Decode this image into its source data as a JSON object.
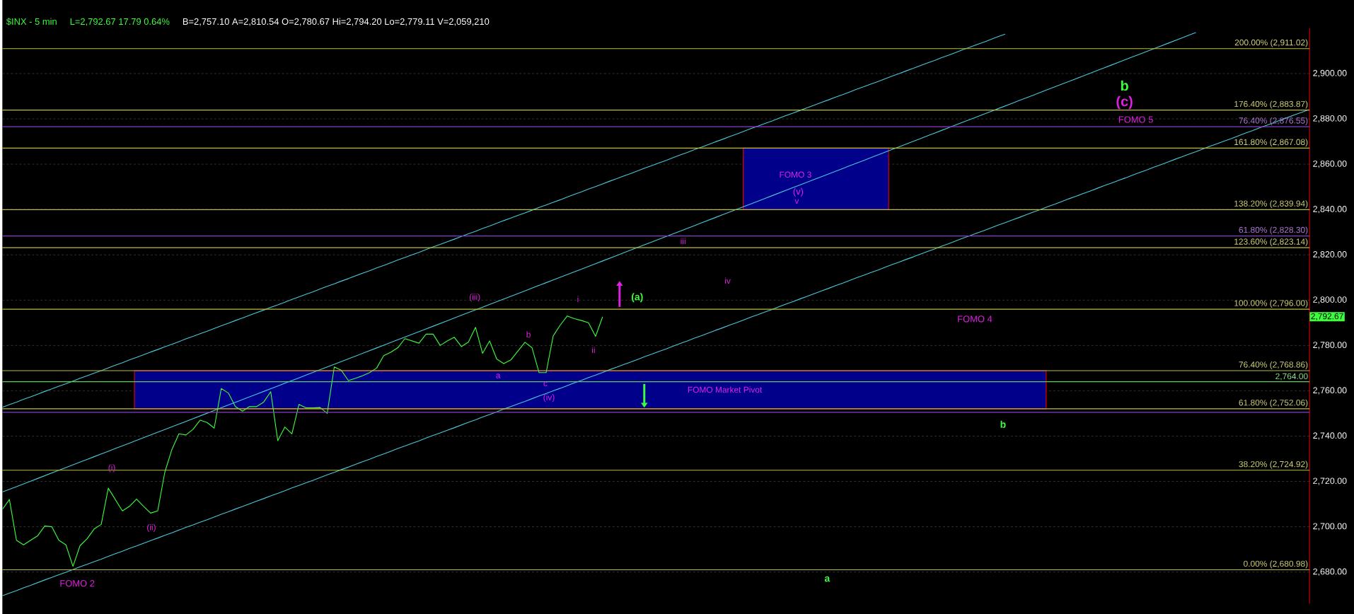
{
  "chart_data": {
    "type": "line",
    "title": "$INX - 5 min",
    "subtitle": "L=2,792.67   17.79   0.64%",
    "categories": [
      null,
      null,
      null,
      null,
      null,
      null,
      null,
      null,
      null,
      null,
      null,
      null,
      null,
      null,
      null,
      null,
      null,
      null,
      null,
      null,
      null,
      null,
      null,
      null,
      null,
      null,
      null,
      null,
      null,
      null,
      null,
      null,
      null,
      null,
      null,
      null,
      null,
      null,
      null,
      null,
      null,
      null,
      null,
      null,
      null,
      null,
      null,
      null,
      null,
      null,
      null,
      null,
      null,
      null,
      null,
      null,
      null,
      null,
      null,
      null,
      null,
      null,
      null,
      null,
      null,
      null,
      null,
      null,
      null,
      null,
      null,
      null,
      null,
      null,
      null,
      null,
      null,
      null,
      null,
      null,
      null,
      null,
      null,
      null,
      null,
      null,
      null,
      null,
      null,
      null,
      null,
      null,
      null,
      null,
      null,
      null,
      null,
      null,
      null,
      null,
      null,
      null,
      null,
      null,
      null,
      null,
      null,
      null,
      null,
      null,
      null,
      null,
      null,
      null,
      null,
      null,
      null,
      null,
      null,
      null,
      null,
      null,
      null,
      null,
      null,
      null,
      null,
      null,
      null,
      null,
      null,
      null,
      null,
      null,
      null,
      null,
      null,
      null,
      null,
      null,
      null,
      null,
      null,
      null,
      null,
      null,
      null,
      null,
      null,
      null,
      null,
      null,
      null,
      null,
      null,
      null,
      null,
      null,
      null,
      null,
      null,
      null,
      null,
      null,
      null,
      null,
      null,
      null,
      null,
      null,
      null,
      null,
      null,
      null,
      null,
      null,
      null,
      null,
      null,
      null,
      null,
      null,
      null,
      null,
      null,
      null
    ],
    "ylim": [
      2666,
      2920
    ],
    "yticks": [
      {
        "value": 2680,
        "label": "2,680.00"
      },
      {
        "value": 2700,
        "label": "2,700.00"
      },
      {
        "value": 2720,
        "label": "2,720.00"
      },
      {
        "value": 2740,
        "label": "2,740.00"
      },
      {
        "value": 2760,
        "label": "2,760.00"
      },
      {
        "value": 2780,
        "label": "2,780.00"
      },
      {
        "value": 2800,
        "label": "2,800.00"
      },
      {
        "value": 2820,
        "label": "2,820.00"
      },
      {
        "value": 2840,
        "label": "2,840.00"
      },
      {
        "value": 2860,
        "label": "2,860.00"
      },
      {
        "value": 2880,
        "label": "2,880.00"
      },
      {
        "value": 2900,
        "label": "2,900.00"
      }
    ],
    "tick_labels": "y",
    "grid": "y",
    "series": [
      {
        "color": "#3cff3c",
        "values": [
          2707.6,
          2712,
          2694,
          2692,
          2694,
          2696,
          2700.3,
          2700,
          2694,
          2692,
          2682.5,
          2691.6,
          2694.7,
          2699,
          2701,
          2717,
          2712,
          2707,
          2709,
          2712.2,
          2709,
          2706,
          2707,
          2724,
          2734,
          2741,
          2740.5,
          2743,
          2747,
          2746,
          2743.5,
          2761,
          2759,
          2753,
          2751,
          2753,
          2753,
          2755,
          2759.6,
          2738,
          2744,
          2741,
          2754,
          2752.5,
          2752.5,
          2752.6,
          2750,
          2770.5,
          2769,
          2764.5,
          2765.5,
          2766.6,
          2768,
          2770,
          2775.5,
          2777,
          2779,
          2783,
          2782,
          2781,
          2785,
          2785,
          2780,
          2782,
          2783.6,
          2779.5,
          2781.5,
          2788,
          2776.5,
          2782,
          2774,
          2772,
          2773.6,
          2777.5,
          2781.4,
          2779,
          2768,
          2768,
          2784.2,
          2789,
          2793,
          2791.8,
          2791,
          2790,
          2784,
          2792.67,
          null,
          null,
          null,
          null,
          null,
          null,
          null,
          null,
          null,
          null,
          null,
          null,
          null,
          null,
          null,
          null,
          null,
          null,
          null,
          null,
          null,
          null,
          null,
          null,
          null,
          null,
          null,
          null,
          null,
          null,
          null,
          null,
          null,
          null,
          null,
          null,
          null,
          null,
          null,
          null,
          null,
          null,
          null,
          null,
          null,
          null,
          null,
          null,
          null,
          null,
          null,
          null,
          null,
          null,
          null,
          null,
          null,
          null,
          null,
          null,
          null,
          null,
          null,
          null,
          null,
          null,
          null,
          null,
          null,
          null,
          null,
          null,
          null,
          null,
          null,
          null,
          null,
          null,
          null,
          null,
          null,
          null,
          null,
          null,
          null,
          null,
          null,
          null,
          null,
          null,
          null,
          null,
          null,
          null,
          null,
          null,
          null,
          null,
          null,
          null
        ]
      },
      {
        "type": "line",
        "color": "#48c8d8",
        "values": [
          2752.7,
          2753.9,
          2755.0,
          2756.2,
          2757.3,
          2758.5,
          2759.7,
          2760.8,
          2762.0,
          2763.1,
          2764.3,
          2765.5,
          2766.6,
          2767.8,
          2768.9,
          2770.1,
          2771.3,
          2772.4,
          2773.6,
          2774.7,
          2775.9,
          2777.1,
          2778.2,
          2779.4,
          2780.5,
          2781.7,
          2782.9,
          2784.0,
          2785.2,
          2786.3,
          2787.5,
          2788.7,
          2789.8,
          2791.0,
          2792.1,
          2793.3,
          2794.5,
          2795.6,
          2796.8,
          2797.9,
          2799.1,
          2800.3,
          2801.4,
          2802.6,
          2803.7,
          2804.9,
          2806.1,
          2807.2,
          2808.4,
          2809.5,
          2810.7,
          2811.9,
          2813.0,
          2814.2,
          2815.3,
          2816.5,
          2817.7,
          2818.8,
          2820.0,
          2821.1,
          2822.3,
          2823.5,
          2824.6,
          2825.8,
          2826.9,
          2828.1,
          2829.3,
          2830.4,
          2831.6,
          2832.7,
          2833.9,
          2835.1,
          2836.2,
          2837.4,
          2838.5,
          2839.7,
          2840.9,
          2842.0,
          2843.2,
          2844.3,
          2845.5,
          2846.7,
          2847.8,
          2849.0,
          2850.1,
          2851.3,
          2852.5,
          2853.6,
          2854.8,
          2855.9,
          2857.1,
          2858.3,
          2859.4,
          2860.6,
          2861.7,
          2862.9,
          2864.1,
          2865.2,
          2866.4,
          2867.5,
          2868.7,
          2869.9,
          2871.0,
          2872.2,
          2873.3,
          2874.5,
          2875.7,
          2876.8,
          2878.0,
          2879.1,
          2880.3,
          2881.5,
          2882.6,
          2883.8,
          2884.9,
          2886.1,
          2887.3,
          2888.4,
          2889.6,
          2890.7,
          2891.9,
          2893.1,
          2894.2,
          2895.4,
          2896.5,
          2897.7,
          2898.9,
          2900.0,
          2901.2,
          2902.3,
          2903.5,
          2904.7,
          2905.8,
          2907.0,
          2908.1,
          2909.3,
          2910.5,
          2911.6,
          2912.8,
          2913.9,
          2915.1,
          2916.3,
          2917.4,
          null,
          null,
          null,
          null,
          null,
          null,
          null,
          null,
          null,
          null,
          null,
          null,
          null,
          null,
          null,
          null,
          null,
          null,
          null,
          null,
          null,
          null,
          null,
          null,
          null,
          null,
          null,
          null,
          null,
          null,
          null,
          null,
          null,
          null,
          null,
          null,
          null,
          null,
          null,
          null,
          null,
          null,
          null
        ]
      },
      {
        "type": "line",
        "color": "#48c8d8",
        "values": [
          2715.3,
          2716.5,
          2717.7,
          2718.9,
          2720.1,
          2721.3,
          2722.5,
          2723.7,
          2724.9,
          2726.1,
          2727.3,
          2728.5,
          2729.7,
          2730.9,
          2732.1,
          2733.3,
          2734.5,
          2735.7,
          2736.9,
          2738.1,
          2739.3,
          2740.5,
          2741.7,
          2742.9,
          2744.1,
          2745.3,
          2746.5,
          2747.7,
          2748.9,
          2750.1,
          2751.3,
          2752.5,
          2753.7,
          2754.9,
          2756.1,
          2757.3,
          2758.5,
          2759.7,
          2760.9,
          2762.1,
          2763.3,
          2764.5,
          2765.7,
          2766.9,
          2768.1,
          2769.3,
          2770.5,
          2771.7,
          2772.9,
          2774.1,
          2775.3,
          2776.5,
          2777.7,
          2778.9,
          2780.1,
          2781.3,
          2782.5,
          2783.7,
          2784.9,
          2786.1,
          2787.3,
          2788.5,
          2789.7,
          2790.9,
          2792.1,
          2793.3,
          2794.5,
          2795.7,
          2796.9,
          2798.1,
          2799.3,
          2800.5,
          2801.7,
          2802.9,
          2804.1,
          2805.3,
          2806.5,
          2807.7,
          2808.9,
          2810.1,
          2811.3,
          2812.5,
          2813.7,
          2814.9,
          2816.1,
          2817.3,
          2818.5,
          2819.7,
          2820.9,
          2822.1,
          2823.3,
          2824.5,
          2825.7,
          2826.9,
          2828.1,
          2829.3,
          2830.5,
          2831.7,
          2832.9,
          2834.1,
          2835.3,
          2836.5,
          2837.7,
          2838.9,
          2840.1,
          2841.3,
          2842.5,
          2843.7,
          2844.9,
          2846.1,
          2847.3,
          2848.5,
          2849.7,
          2850.9,
          2852.1,
          2853.3,
          2854.5,
          2855.7,
          2856.9,
          2858.1,
          2859.3,
          2860.5,
          2861.7,
          2862.9,
          2864.1,
          2865.3,
          2866.5,
          2867.7,
          2868.9,
          2870.1,
          2871.3,
          2872.5,
          2873.7,
          2874.9,
          2876.1,
          2877.3,
          2878.5,
          2879.7,
          2880.9,
          2882.1,
          2883.3,
          2884.5,
          2885.7,
          2886.9,
          2888.1,
          2889.3,
          2890.5,
          2891.7,
          2892.9,
          2894.1,
          2895.3,
          2896.5,
          2897.7,
          2898.9,
          2900.1,
          2901.3,
          2902.5,
          2903.7,
          2904.9,
          2906.1,
          2907.3,
          2908.5,
          2909.7,
          2910.9,
          2912.1,
          2913.3,
          2914.5,
          2915.7,
          2916.9,
          2918.1,
          null,
          null,
          null,
          null,
          null,
          null,
          null,
          null,
          null,
          null,
          null,
          null,
          null,
          null,
          null,
          null
        ]
      },
      {
        "type": "line",
        "color": "#48c8d8",
        "values": [
          2669.5,
          2670.7,
          2671.8,
          2673.0,
          2674.1,
          2675.3,
          2676.5,
          2677.6,
          2678.8,
          2679.9,
          2681.1,
          2682.3,
          2683.4,
          2684.6,
          2685.7,
          2686.9,
          2688.1,
          2689.2,
          2690.4,
          2691.5,
          2692.7,
          2693.9,
          2695.0,
          2696.2,
          2697.3,
          2698.5,
          2699.7,
          2700.8,
          2702.0,
          2703.1,
          2704.3,
          2705.5,
          2706.6,
          2707.8,
          2708.9,
          2710.1,
          2711.3,
          2712.4,
          2713.6,
          2714.7,
          2715.9,
          2717.1,
          2718.2,
          2719.4,
          2720.5,
          2721.7,
          2722.9,
          2724.0,
          2725.2,
          2726.3,
          2727.5,
          2728.7,
          2729.8,
          2731.0,
          2732.1,
          2733.3,
          2734.5,
          2735.6,
          2736.8,
          2737.9,
          2739.1,
          2740.3,
          2741.4,
          2742.6,
          2743.7,
          2744.9,
          2746.1,
          2747.2,
          2748.4,
          2749.5,
          2750.7,
          2751.9,
          2753.0,
          2754.2,
          2755.3,
          2756.5,
          2757.7,
          2758.8,
          2760.0,
          2761.1,
          2762.3,
          2763.5,
          2764.6,
          2765.8,
          2766.9,
          2768.1,
          2769.3,
          2770.4,
          2771.6,
          2772.7,
          2773.9,
          2775.1,
          2776.2,
          2777.4,
          2778.5,
          2779.7,
          2780.9,
          2782.0,
          2783.2,
          2784.3,
          2785.5,
          2786.7,
          2787.8,
          2789.0,
          2790.1,
          2791.3,
          2792.5,
          2793.6,
          2794.8,
          2795.9,
          2797.1,
          2798.3,
          2799.4,
          2800.6,
          2801.7,
          2802.9,
          2804.1,
          2805.2,
          2806.4,
          2807.5,
          2808.7,
          2809.9,
          2811.0,
          2812.2,
          2813.3,
          2814.5,
          2815.7,
          2816.8,
          2818.0,
          2819.1,
          2820.3,
          2821.5,
          2822.6,
          2823.8,
          2824.9,
          2826.1,
          2827.3,
          2828.4,
          2829.6,
          2830.7,
          2831.9,
          2833.1,
          2834.2,
          2835.4,
          2836.5,
          2837.7,
          2838.9,
          2840.0,
          2841.2,
          2842.3,
          2843.5,
          2844.7,
          2845.8,
          2847.0,
          2848.1,
          2849.3,
          2850.5,
          2851.6,
          2852.8,
          2853.9,
          2855.1,
          2856.3,
          2857.4,
          2858.6,
          2859.7,
          2860.9,
          2862.1,
          2863.2,
          2864.4,
          2865.5,
          2866.7,
          2867.9,
          2869.0,
          2870.2,
          2871.3,
          2872.5,
          2873.7,
          2874.8,
          2876.0,
          2877.1,
          2878.3,
          2879.5,
          2880.6,
          2881.8,
          2882.9,
          2884.1
        ]
      }
    ],
    "bands": [
      {
        "axis": "y",
        "from": 2752.06,
        "to": 2768.86,
        "label": "FOMO Market Pivot",
        "color": "#00008b"
      },
      {
        "axis": "y",
        "from": 2839.94,
        "to": 2867.08,
        "label": "FOMO 3",
        "color": "#00008b"
      }
    ],
    "ref_lines": [
      {
        "axis": "y",
        "value": 2911.02,
        "label": "200.00% (2,911.02)",
        "color": "#bcbc3c"
      },
      {
        "axis": "y",
        "value": 2883.87,
        "label": "176.40% (2,883.87)",
        "color": "#bcbc3c"
      },
      {
        "axis": "y",
        "value": 2876.55,
        "label": "76.40% (2,876.55)",
        "color": "#8a3cc8"
      },
      {
        "axis": "y",
        "value": 2867.08,
        "label": "161.80% (2,867.08)",
        "color": "#bcbc3c"
      },
      {
        "axis": "y",
        "value": 2839.94,
        "label": "138.20% (2,839.94)",
        "color": "#bcbc3c"
      },
      {
        "axis": "y",
        "value": 2828.3,
        "label": "61.80% (2,828.30)",
        "color": "#8a3cc8"
      },
      {
        "axis": "y",
        "value": 2823.14,
        "label": "123.60% (2,823.14)",
        "color": "#bcbc3c"
      },
      {
        "axis": "y",
        "value": 2796.0,
        "label": "100.00% (2,796.00)",
        "color": "#bcbc3c"
      },
      {
        "axis": "y",
        "value": 2768.86,
        "label": "76.40% (2,768.86)",
        "color": "#bcbc3c"
      },
      {
        "axis": "y",
        "value": 2764.0,
        "label": "2,764.00",
        "color": "#5ad25a"
      },
      {
        "axis": "y",
        "value": 2752.06,
        "label": "61.80% (2,752.06)",
        "color": "#bcbc3c"
      },
      {
        "axis": "y",
        "value": 2750.5,
        "color": "#8a3cc8"
      },
      {
        "axis": "y",
        "value": 2724.92,
        "label": "38.20% (2,724.92)",
        "color": "#bcbc3c"
      },
      {
        "axis": "y",
        "value": 2680.98,
        "label": "0.00% (2,680.98)",
        "color": "#bcbc3c"
      }
    ],
    "annotations": [
      "B=2,757.10   A=2,810.54   O=2,780.67   Hi=2,794.20   Lo=2,779.11   V=2,059,210",
      "2,792.67",
      "b",
      "(c)",
      "FOMO 5",
      "(v)",
      "v",
      "iii",
      "iv",
      "(a)",
      "(iii)",
      "i",
      "b",
      "ii",
      "a",
      "c",
      "(iv)",
      "FOMO 4",
      "b",
      "(i)",
      "(ii)",
      "FOMO 2",
      "a"
    ]
  }
}
